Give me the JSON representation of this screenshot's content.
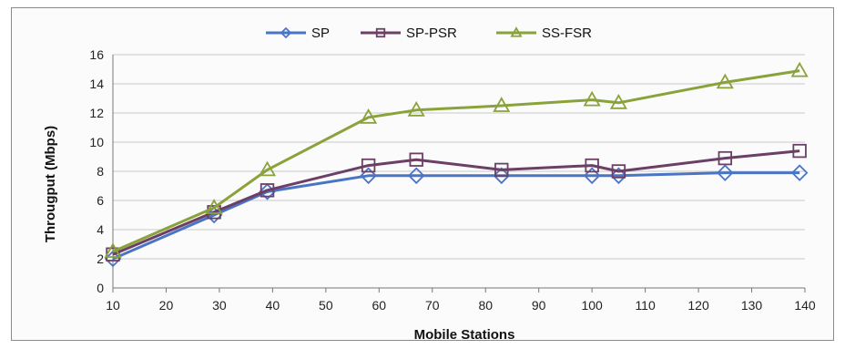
{
  "chart_data": {
    "type": "line",
    "title": "",
    "xlabel": "Mobile Stations",
    "ylabel": "Througput (Mbps)",
    "xlim": [
      10,
      140
    ],
    "ylim": [
      0,
      16
    ],
    "xticks": [
      10,
      20,
      30,
      40,
      50,
      60,
      70,
      80,
      90,
      100,
      110,
      120,
      130,
      140
    ],
    "yticks": [
      0,
      2,
      4,
      6,
      8,
      10,
      12,
      14,
      16
    ],
    "grid": true,
    "legend_position": "top",
    "series": [
      {
        "name": "SP",
        "color": "#4a74c4",
        "marker": "diamond",
        "points": [
          [
            10,
            2.0
          ],
          [
            29,
            5.0
          ],
          [
            39,
            6.6
          ],
          [
            58,
            7.7
          ],
          [
            67,
            7.7
          ],
          [
            83,
            7.7
          ],
          [
            100,
            7.7
          ],
          [
            105,
            7.7
          ],
          [
            125,
            7.9
          ],
          [
            139,
            7.9
          ]
        ]
      },
      {
        "name": "SP-PSR",
        "color": "#6b3f66",
        "marker": "square",
        "points": [
          [
            10,
            2.3
          ],
          [
            29,
            5.2
          ],
          [
            39,
            6.7
          ],
          [
            58,
            8.4
          ],
          [
            67,
            8.8
          ],
          [
            83,
            8.1
          ],
          [
            100,
            8.4
          ],
          [
            105,
            8.0
          ],
          [
            125,
            8.9
          ],
          [
            139,
            9.4
          ]
        ]
      },
      {
        "name": "SS-FSR",
        "color": "#8aa23a",
        "marker": "triangle",
        "points": [
          [
            10,
            2.5
          ],
          [
            29,
            5.5
          ],
          [
            39,
            8.1
          ],
          [
            58,
            11.7
          ],
          [
            67,
            12.2
          ],
          [
            83,
            12.5
          ],
          [
            100,
            12.9
          ],
          [
            105,
            12.7
          ],
          [
            125,
            14.1
          ],
          [
            139,
            14.9
          ]
        ]
      }
    ]
  }
}
